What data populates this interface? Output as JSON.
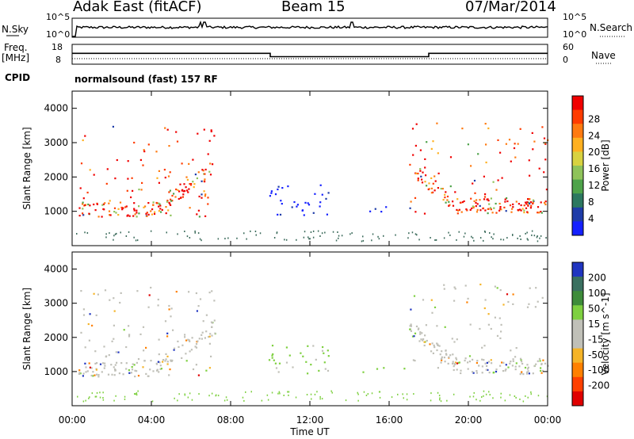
{
  "header": {
    "station": "Adak East (fitACF)",
    "beam": "Beam 15",
    "date": "07/Mar/2014"
  },
  "side_labels": {
    "nsky": "N.Sky",
    "nsearch": "N.Search",
    "freq": "Freq.",
    "freq_unit": "[MHz]",
    "nave": "Nave",
    "cpid": "CPID",
    "cpid_value": "normalsound (fast) 157 RF"
  },
  "noise_panel": {
    "left_ticks": [
      "10^5",
      "10^0"
    ],
    "right_ticks": [
      "10^5",
      "10^0"
    ]
  },
  "freq_panel": {
    "left_ticks": [
      "18",
      "8"
    ],
    "right_ticks": [
      "60",
      "0"
    ],
    "segments": [
      {
        "start_h": 0,
        "end_h": 10,
        "freq_mhz": 13.5
      },
      {
        "start_h": 10,
        "end_h": 18,
        "freq_mhz": 11.8
      },
      {
        "start_h": 18,
        "end_h": 24,
        "freq_mhz": 13.5
      }
    ]
  },
  "chart_data": [
    {
      "type": "heatmap",
      "title": "",
      "quantity": "Power",
      "ylabel": "Slant Range [km]",
      "colorbar_label": "Power [dB]",
      "yticks": [
        "1000",
        "2000",
        "3000",
        "4000"
      ],
      "colorbar_ticks": [
        "4",
        "8",
        "12",
        "16",
        "20",
        "24",
        "28"
      ],
      "colorbar_colors": [
        "#1420ff",
        "#1e3ca8",
        "#2c7860",
        "#4ea34a",
        "#8fc35a",
        "#d8d240",
        "#ffb020",
        "#ff7a10",
        "#ff3c00",
        "#f00000"
      ],
      "ylim": [
        0,
        4500
      ],
      "regions": [
        {
          "t0": 0.3,
          "t1": 7.2,
          "r_low": 850,
          "r_high": 3500,
          "dominant": "red-orange"
        },
        {
          "t0": 9.9,
          "t1": 13.0,
          "r_low": 900,
          "r_high": 1800,
          "dominant": "blue"
        },
        {
          "t0": 14.5,
          "t1": 17.2,
          "r_low": 1000,
          "r_high": 1150,
          "dominant": "blue"
        },
        {
          "t0": 17.0,
          "t1": 24.0,
          "r_low": 950,
          "r_high": 3600,
          "dominant": "red-orange"
        }
      ]
    },
    {
      "type": "heatmap",
      "title": "",
      "quantity": "Velocity",
      "ylabel": "Slant Range [km]",
      "colorbar_label": "Velocity [m s^-1]",
      "yticks": [
        "1000",
        "2000",
        "3000",
        "4000"
      ],
      "colorbar_ticks": [
        "200",
        "100",
        "50",
        "15",
        "-15",
        "-50",
        "-100",
        "-200"
      ],
      "colorbar_colors": [
        "#2035c0",
        "#3a7060",
        "#3e8c3a",
        "#7ed040",
        "#c0c0b8",
        "#c0c0b8",
        "#f5b428",
        "#ff8000",
        "#ff4000",
        "#e00000"
      ],
      "ylim": [
        0,
        4500
      ],
      "regions": [
        {
          "t0": 0.3,
          "t1": 7.2,
          "r_low": 850,
          "r_high": 3500,
          "dominant": "grey"
        },
        {
          "t0": 9.9,
          "t1": 13.0,
          "r_low": 900,
          "r_high": 1800,
          "dominant": "green"
        },
        {
          "t0": 14.5,
          "t1": 17.2,
          "r_low": 1000,
          "r_high": 1150,
          "dominant": "green"
        },
        {
          "t0": 17.0,
          "t1": 24.0,
          "r_low": 950,
          "r_high": 3600,
          "dominant": "grey"
        }
      ]
    }
  ],
  "xaxis": {
    "label": "Time UT",
    "ticks": [
      "00:00",
      "04:00",
      "08:00",
      "12:00",
      "16:00",
      "20:00",
      "00:00"
    ],
    "range_hours": [
      0,
      24
    ]
  }
}
